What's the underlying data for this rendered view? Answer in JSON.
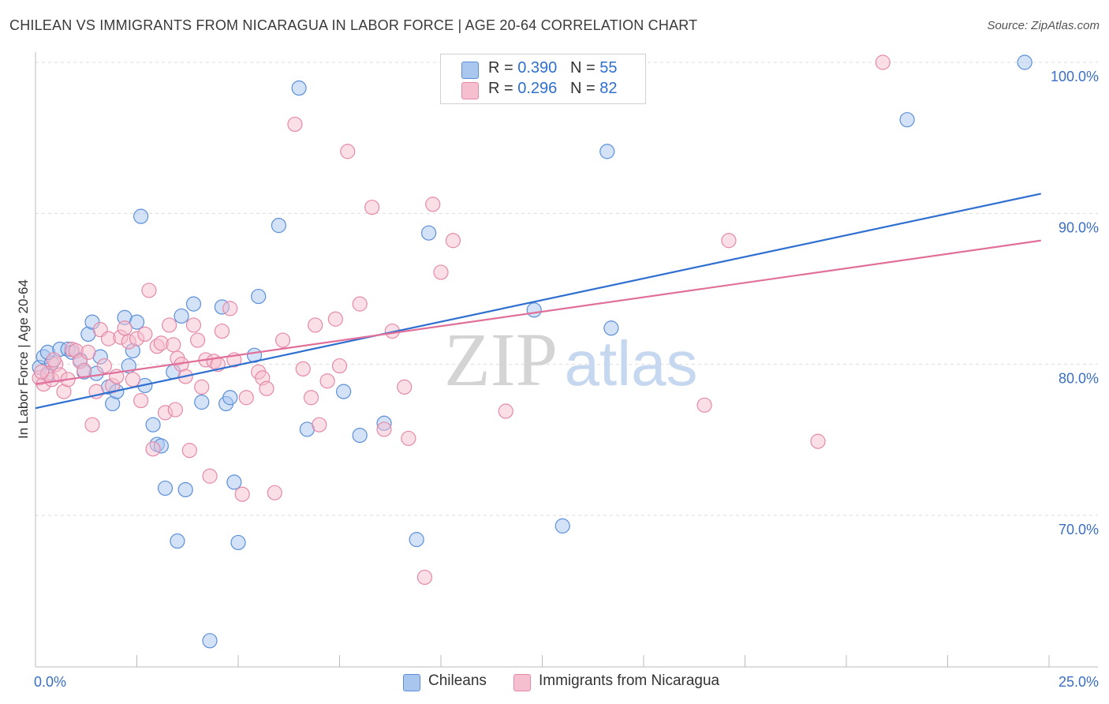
{
  "title": "CHILEAN VS IMMIGRANTS FROM NICARAGUA IN LABOR FORCE | AGE 20-64 CORRELATION CHART",
  "source": "Source: ZipAtlas.com",
  "watermark": {
    "zip": "ZIP",
    "atlas": "atlas"
  },
  "colors": {
    "blue_fill": "#a9c6ef",
    "blue_stroke": "#5b8fd8",
    "blue_line": "#2f6fd0",
    "pink_fill": "#f6bfd0",
    "pink_stroke": "#e48aa8",
    "pink_line": "#e0709a",
    "axis_text": "#3b6fc4",
    "grid": "#dddddd"
  },
  "legend": {
    "rows": [
      {
        "r_label": "R =",
        "r_value": "0.390",
        "n_label": "N =",
        "n_value": "55"
      },
      {
        "r_label": "R =",
        "r_value": "0.296",
        "n_label": "N =",
        "n_value": "82"
      }
    ]
  },
  "bottom_legend": {
    "series1": "Chileans",
    "series2": "Immigrants from Nicaragua"
  },
  "chart_data": {
    "type": "scatter",
    "title": "CHILEAN VS IMMIGRANTS FROM NICARAGUA IN LABOR FORCE | AGE 20-64 CORRELATION CHART",
    "xlabel": "",
    "ylabel": "In Labor Force | Age 20-64",
    "xlim": [
      0,
      25
    ],
    "ylim": [
      60,
      100
    ],
    "x_tick_labels": [
      "0.0%",
      "25.0%"
    ],
    "y_tick_labels": [
      "70.0%",
      "80.0%",
      "90.0%",
      "100.0%"
    ],
    "y_gridlines": [
      70,
      80,
      90,
      100
    ],
    "series": [
      {
        "name": "Chileans",
        "color": "blue",
        "trend": {
          "x0": 0,
          "y0": 77.1,
          "x1": 24.8,
          "y1": 91.3
        },
        "points": [
          [
            0.1,
            79.8
          ],
          [
            0.2,
            80.5
          ],
          [
            0.3,
            79.3
          ],
          [
            0.4,
            80.1
          ],
          [
            0.3,
            80.8
          ],
          [
            0.6,
            81.0
          ],
          [
            0.8,
            81.0
          ],
          [
            0.9,
            80.8
          ],
          [
            1.1,
            80.3
          ],
          [
            1.2,
            79.5
          ],
          [
            1.3,
            82.0
          ],
          [
            1.4,
            82.8
          ],
          [
            1.5,
            79.4
          ],
          [
            1.6,
            80.5
          ],
          [
            1.8,
            78.5
          ],
          [
            1.9,
            77.4
          ],
          [
            2.0,
            78.2
          ],
          [
            2.2,
            83.1
          ],
          [
            2.3,
            79.9
          ],
          [
            2.4,
            80.9
          ],
          [
            2.5,
            82.8
          ],
          [
            2.6,
            89.8
          ],
          [
            2.7,
            78.6
          ],
          [
            2.9,
            76.0
          ],
          [
            3.0,
            74.7
          ],
          [
            3.1,
            74.6
          ],
          [
            3.2,
            71.8
          ],
          [
            3.4,
            79.5
          ],
          [
            3.5,
            68.3
          ],
          [
            3.6,
            83.2
          ],
          [
            3.7,
            71.7
          ],
          [
            3.9,
            84.0
          ],
          [
            4.1,
            77.5
          ],
          [
            4.3,
            61.7
          ],
          [
            4.6,
            83.8
          ],
          [
            4.7,
            77.4
          ],
          [
            4.8,
            77.8
          ],
          [
            4.9,
            72.2
          ],
          [
            5.0,
            68.2
          ],
          [
            5.4,
            80.6
          ],
          [
            5.5,
            84.5
          ],
          [
            6.0,
            89.2
          ],
          [
            6.5,
            98.3
          ],
          [
            6.7,
            75.7
          ],
          [
            7.6,
            78.2
          ],
          [
            8.0,
            75.3
          ],
          [
            8.6,
            76.1
          ],
          [
            9.4,
            68.4
          ],
          [
            9.7,
            88.7
          ],
          [
            12.3,
            83.6
          ],
          [
            13.0,
            69.3
          ],
          [
            14.1,
            94.1
          ],
          [
            14.2,
            82.4
          ],
          [
            21.5,
            96.2
          ],
          [
            24.4,
            100.0
          ]
        ]
      },
      {
        "name": "Immigrants from Nicaragua",
        "color": "pink",
        "trend": {
          "x0": 0,
          "y0": 78.7,
          "x1": 24.8,
          "y1": 88.2
        },
        "points": [
          [
            0.1,
            79.1
          ],
          [
            0.2,
            78.7
          ],
          [
            0.3,
            79.4
          ],
          [
            0.4,
            79.0
          ],
          [
            0.5,
            80.0
          ],
          [
            0.6,
            79.3
          ],
          [
            0.7,
            78.2
          ],
          [
            0.8,
            79.0
          ],
          [
            0.9,
            81.0
          ],
          [
            1.0,
            80.9
          ],
          [
            1.1,
            80.2
          ],
          [
            1.2,
            79.6
          ],
          [
            1.3,
            80.8
          ],
          [
            1.4,
            76.0
          ],
          [
            1.5,
            78.2
          ],
          [
            1.6,
            82.3
          ],
          [
            1.7,
            79.9
          ],
          [
            1.8,
            81.7
          ],
          [
            1.9,
            78.6
          ],
          [
            2.0,
            79.2
          ],
          [
            2.1,
            81.8
          ],
          [
            2.2,
            82.4
          ],
          [
            2.3,
            81.5
          ],
          [
            2.4,
            79.0
          ],
          [
            2.5,
            81.7
          ],
          [
            2.6,
            77.6
          ],
          [
            2.7,
            82.0
          ],
          [
            2.8,
            84.9
          ],
          [
            2.9,
            74.4
          ],
          [
            3.0,
            81.2
          ],
          [
            3.1,
            81.4
          ],
          [
            3.2,
            76.8
          ],
          [
            3.3,
            82.6
          ],
          [
            3.4,
            81.3
          ],
          [
            3.5,
            80.4
          ],
          [
            3.6,
            80.0
          ],
          [
            3.7,
            79.2
          ],
          [
            3.8,
            74.3
          ],
          [
            3.9,
            82.6
          ],
          [
            4.0,
            81.6
          ],
          [
            4.2,
            80.3
          ],
          [
            4.3,
            72.6
          ],
          [
            4.4,
            80.2
          ],
          [
            4.5,
            80.0
          ],
          [
            4.6,
            82.2
          ],
          [
            4.8,
            83.7
          ],
          [
            4.9,
            80.3
          ],
          [
            5.1,
            71.4
          ],
          [
            5.2,
            77.8
          ],
          [
            5.5,
            79.5
          ],
          [
            5.6,
            79.1
          ],
          [
            5.7,
            78.4
          ],
          [
            5.9,
            71.5
          ],
          [
            6.1,
            81.6
          ],
          [
            6.4,
            95.9
          ],
          [
            6.6,
            79.7
          ],
          [
            6.8,
            77.8
          ],
          [
            6.9,
            82.6
          ],
          [
            7.0,
            76.0
          ],
          [
            7.2,
            78.9
          ],
          [
            7.4,
            83.0
          ],
          [
            7.5,
            79.9
          ],
          [
            7.7,
            94.1
          ],
          [
            8.0,
            84.0
          ],
          [
            8.3,
            90.4
          ],
          [
            8.6,
            75.7
          ],
          [
            8.8,
            82.2
          ],
          [
            9.1,
            78.5
          ],
          [
            9.2,
            75.1
          ],
          [
            9.6,
            65.9
          ],
          [
            9.8,
            90.6
          ],
          [
            10.0,
            86.1
          ],
          [
            10.3,
            88.2
          ],
          [
            11.6,
            76.9
          ],
          [
            16.5,
            77.3
          ],
          [
            17.1,
            88.2
          ],
          [
            19.3,
            74.9
          ],
          [
            20.9,
            100.0
          ],
          [
            0.15,
            79.5
          ],
          [
            0.45,
            80.3
          ],
          [
            4.1,
            78.5
          ],
          [
            3.45,
            77.0
          ]
        ]
      }
    ]
  }
}
